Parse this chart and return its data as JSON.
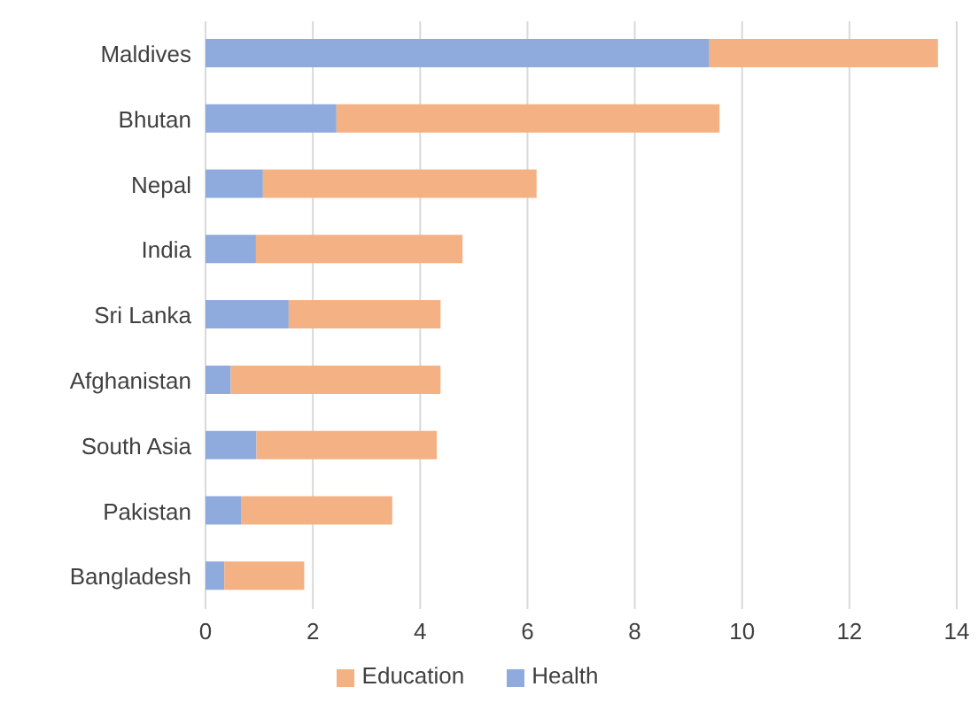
{
  "chart_data": {
    "type": "bar",
    "orientation": "horizontal",
    "stacked": true,
    "categories": [
      "Maldives",
      "Bhutan",
      "Nepal",
      "India",
      "Sri Lanka",
      "Afghanistan",
      "South Asia",
      "Pakistan",
      "Bangladesh"
    ],
    "series": [
      {
        "name": "Health",
        "color": "#8faadc",
        "values": [
          9.39,
          2.44,
          1.07,
          0.94,
          1.55,
          0.47,
          0.95,
          0.66,
          0.35
        ]
      },
      {
        "name": "Education",
        "color": "#f4b183",
        "values": [
          4.26,
          7.14,
          5.1,
          3.85,
          2.83,
          3.91,
          3.36,
          2.82,
          1.49
        ]
      }
    ],
    "xlim": [
      0,
      14
    ],
    "xticks": [
      0,
      2,
      4,
      6,
      8,
      10,
      12,
      14
    ],
    "grid": "x",
    "legend": "bottom"
  }
}
